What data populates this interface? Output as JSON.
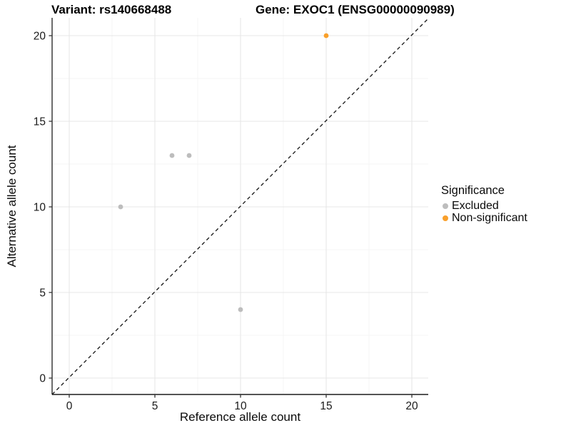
{
  "figure": {
    "title_left": "Variant: rs140668488",
    "title_right": "Gene: EXOC1 (ENSG00000090989)"
  },
  "chart_data": {
    "type": "scatter",
    "title": "Variant: rs140668488    Gene: EXOC1 (ENSG00000090989)",
    "xlabel": "Reference allele count",
    "ylabel": "Alternative allele count",
    "xlim": [
      -1,
      21
    ],
    "ylim": [
      -1,
      21
    ],
    "x_ticks": [
      0,
      5,
      10,
      15,
      20
    ],
    "y_ticks": [
      0,
      5,
      10,
      15,
      20
    ],
    "x_minor_ticks": [
      2.5,
      7.5,
      12.5,
      17.5
    ],
    "y_minor_ticks": [
      2.5,
      7.5,
      12.5,
      17.5
    ],
    "grid": true,
    "identity_line": {
      "style": "dashed",
      "from": [
        -1,
        -1
      ],
      "to": [
        21,
        21
      ]
    },
    "series": [
      {
        "name": "Excluded",
        "color": "#BDBDBD",
        "points": [
          [
            3,
            10
          ],
          [
            6,
            13
          ],
          [
            7,
            13
          ],
          [
            10,
            4
          ]
        ]
      },
      {
        "name": "Non-significant",
        "color": "#F9A02B",
        "points": [
          [
            15,
            20
          ]
        ]
      }
    ],
    "legend": {
      "title": "Significance",
      "position": "right"
    },
    "colors": {
      "grid_major": "#E7E7E7",
      "grid_minor": "#F4F4F4",
      "axis_line": "#3c3c3c",
      "tick_mark": "#333333",
      "tick_label": "#1a1a1a",
      "identity_line": "#111111"
    }
  }
}
